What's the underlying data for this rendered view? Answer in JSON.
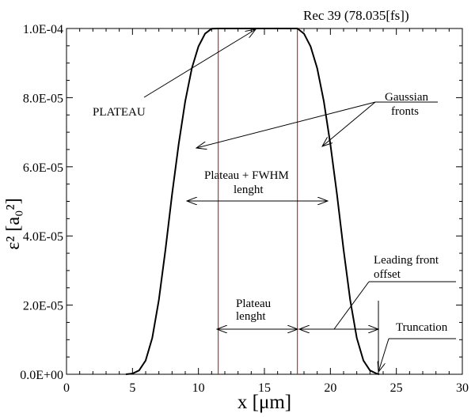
{
  "chart_data": {
    "type": "line",
    "title": "Rec 39 (78.035[fs])",
    "xlabel": "x [μm]",
    "ylabel": "ε² [a₀²]",
    "xlim": [
      0,
      30
    ],
    "ylim": [
      0,
      0.0001
    ],
    "x_ticks": [
      0,
      5,
      10,
      15,
      20,
      25,
      30
    ],
    "x_tick_labels": [
      "0",
      "5",
      "10",
      "15",
      "20",
      "25",
      "30"
    ],
    "y_ticks": [
      0,
      2e-05,
      4e-05,
      6e-05,
      8e-05,
      0.0001
    ],
    "y_tick_labels": [
      "0.0E+00",
      "2.0E-05",
      "4.0E-05",
      "6.0E-05",
      "8.0E-05",
      "1.0E-04"
    ],
    "grid": false,
    "series": [
      {
        "color": "#000000",
        "x": [
          4.5,
          5.0,
          5.5,
          6.0,
          6.5,
          7.0,
          7.5,
          8.0,
          8.5,
          9.0,
          9.5,
          10.0,
          10.5,
          11.0,
          11.5,
          17.5,
          18.0,
          18.5,
          19.0,
          19.5,
          20.0,
          20.5,
          21.0,
          21.5,
          22.0,
          22.5,
          23.0,
          23.5,
          23.7
        ],
        "y": [
          0.0,
          2e-07,
          1.1e-06,
          4e-06,
          1.05e-05,
          2.15e-05,
          3.6e-05,
          5.2e-05,
          6.65e-05,
          7.9e-05,
          8.85e-05,
          9.48e-05,
          9.85e-05,
          9.995e-05,
          0.0001,
          0.0001,
          9.85e-05,
          9.48e-05,
          8.85e-05,
          7.9e-05,
          6.65e-05,
          5.2e-05,
          3.6e-05,
          2.15e-05,
          1.05e-05,
          4e-06,
          1.1e-06,
          2e-07,
          0.0
        ]
      }
    ],
    "vertical_lines": [
      {
        "x": 11.5,
        "color": "#cc0000"
      },
      {
        "x": 17.5,
        "color": "#cc0000"
      }
    ],
    "annotations": {
      "plateau": "PLATEAU",
      "gaussian_1": "Gaussian",
      "gaussian_2": "fronts",
      "fwhm_1": "Plateau + FWHM",
      "fwhm_2": "lenght",
      "plateau_len_1": "Plateau",
      "plateau_len_2": "lenght",
      "offset_1": "Leading front",
      "offset_2": "offset",
      "truncation": "Truncation"
    }
  }
}
